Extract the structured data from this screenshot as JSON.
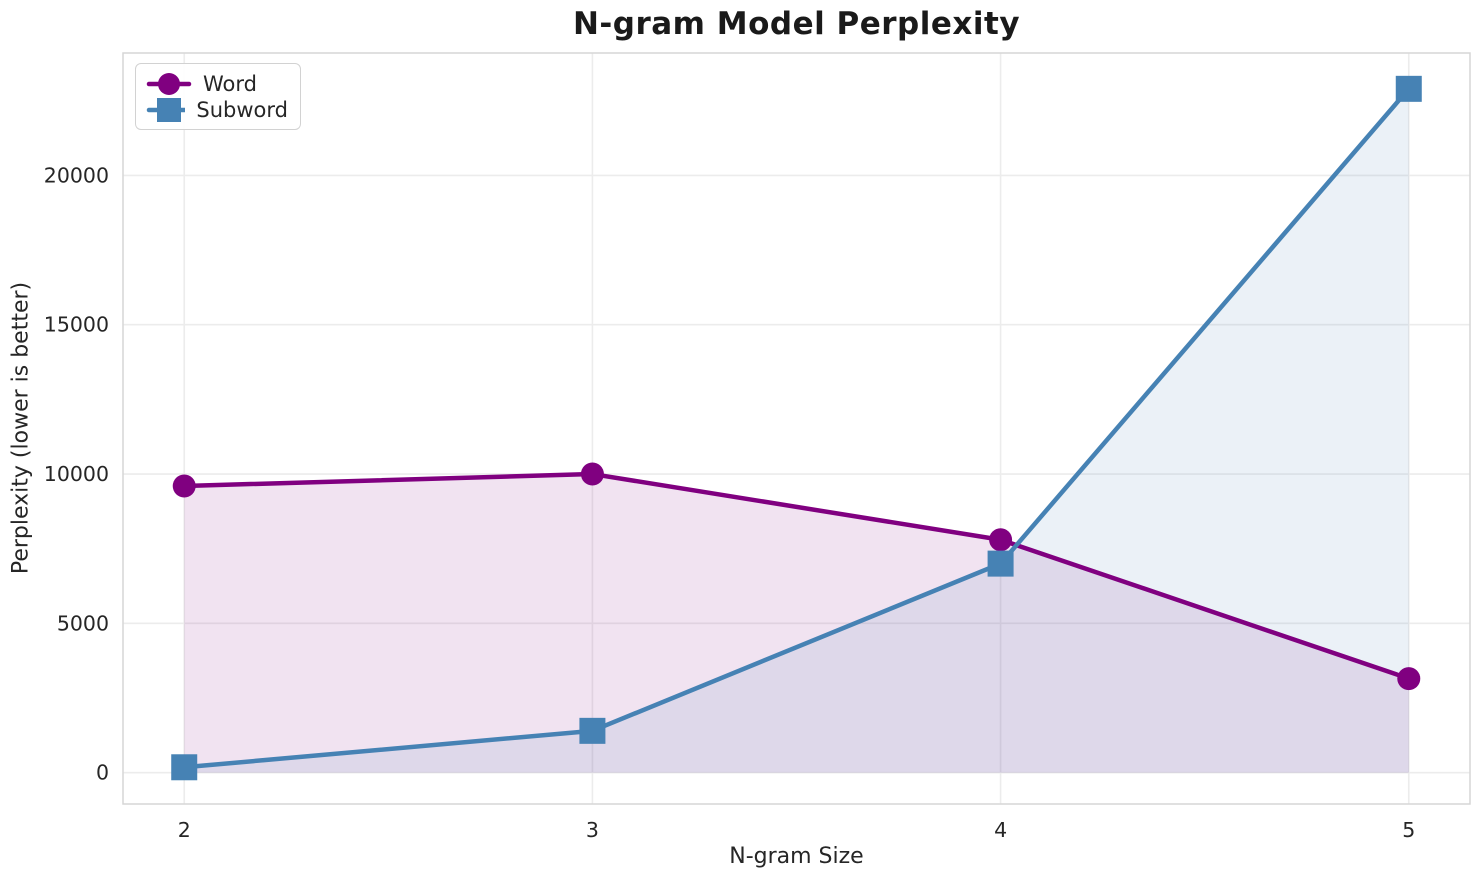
{
  "chart_data": {
    "type": "line",
    "title": "N-gram Model Perplexity",
    "xlabel": "N-gram Size",
    "ylabel": "Perplexity (lower is better)",
    "x": [
      2,
      3,
      4,
      5
    ],
    "series": [
      {
        "name": "Word",
        "marker": "circle",
        "color": "#800080",
        "fill_alpha": 0.11,
        "values": [
          9600,
          10000,
          7800,
          3150
        ]
      },
      {
        "name": "Subword",
        "marker": "square",
        "color": "#4682b4",
        "fill_alpha": 0.11,
        "values": [
          180,
          1400,
          7000,
          22900
        ]
      }
    ],
    "xticks": [
      2,
      3,
      4,
      5
    ],
    "yticks": [
      0,
      5000,
      10000,
      15000,
      20000
    ],
    "xlim": [
      1.85,
      5.15
    ],
    "ylim": [
      -1050,
      24100
    ],
    "area_fill_baseline": 0,
    "grid": true,
    "grid_color": "#ececec",
    "spine_color": "#d6d6d6",
    "tick_label_color": "#262626",
    "legend_position": "upper left"
  }
}
